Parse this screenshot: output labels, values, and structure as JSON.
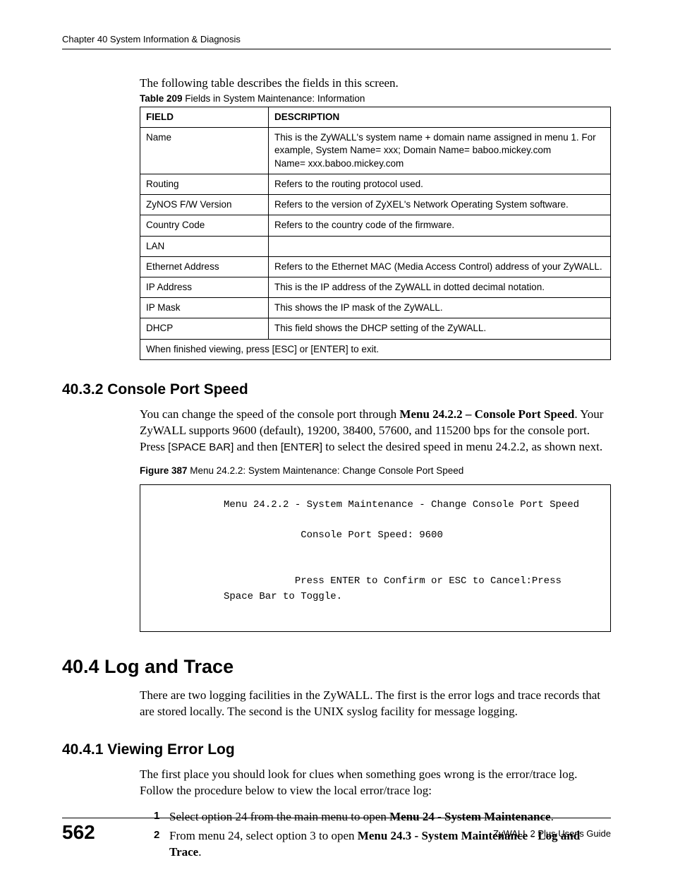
{
  "header": {
    "running": "Chapter 40 System Information & Diagnosis"
  },
  "intro": "The following table describes the fields in this screen.",
  "table": {
    "caption_bold": "Table 209",
    "caption_rest": "   Fields in System Maintenance: Information",
    "head_field": "FIELD",
    "head_desc": "DESCRIPTION",
    "rows": [
      {
        "f": "Name",
        "d": "This is the ZyWALL's system name + domain name assigned in menu 1. For example, System Name= xxx; Domain Name= baboo.mickey.com\nName= xxx.baboo.mickey.com"
      },
      {
        "f": "Routing",
        "d": "Refers to the routing protocol used."
      },
      {
        "f": "ZyNOS F/W Version",
        "d": "Refers to the version of ZyXEL's Network Operating System software."
      },
      {
        "f": "Country Code",
        "d": "Refers to the country code of the firmware."
      },
      {
        "f": "LAN",
        "d": ""
      },
      {
        "f": "Ethernet Address",
        "d": "Refers to the Ethernet MAC (Media Access Control) address of your ZyWALL."
      },
      {
        "f": "IP Address",
        "d": "This is the IP address of the ZyWALL in dotted decimal notation."
      },
      {
        "f": "IP Mask",
        "d": "This shows the IP mask of the ZyWALL."
      },
      {
        "f": "DHCP",
        "d": "This field shows the DHCP setting of the ZyWALL."
      }
    ],
    "footer_row": "When finished viewing, press [ESC] or [ENTER] to exit."
  },
  "s4032": {
    "heading": "40.3.2  Console Port Speed",
    "para_pre": "You can change the speed of the console port through ",
    "para_bold": "Menu 24.2.2 – Console Port Speed",
    "para_post1": ". Your ZyWALL supports 9600 (default), 19200, 38400, 57600, and 115200 bps for the console port. Press ",
    "space_bar": "[SPACE BAR]",
    "and_then": " and then ",
    "enter": "[ENTER]",
    "para_post2": " to select the desired speed in menu 24.2.2, as shown next."
  },
  "figure": {
    "caption_bold": "Figure 387",
    "caption_rest": "   Menu 24.2.2: System Maintenance: Change  Console Port Speed",
    "console": "Menu 24.2.2 - System Maintenance - Change Console Port Speed\n\n             Console Port Speed: 9600\n\n\n            Press ENTER to Confirm or ESC to Cancel:Press\nSpace Bar to Toggle."
  },
  "s404": {
    "heading": "40.4  Log and Trace",
    "para": "There are two logging facilities in the ZyWALL. The first is the error logs and trace records that are stored locally. The second is the UNIX syslog facility for message logging."
  },
  "s4041": {
    "heading": "40.4.1  Viewing Error Log",
    "para": "The first place you should look for clues when something goes wrong is the error/trace log. Follow the procedure below to view the local error/trace log:",
    "step1_pre": "Select option 24 from the main menu to open ",
    "step1_bold": "Menu 24 - System Maintenance",
    "step1_post": ".",
    "step2_pre": "From menu 24, select option 3 to open ",
    "step2_bold": "Menu 24.3 - System Maintenance - Log and Trace",
    "step2_post": "."
  },
  "footer": {
    "page": "562",
    "guide": "ZyWALL 2 Plus User's Guide"
  }
}
